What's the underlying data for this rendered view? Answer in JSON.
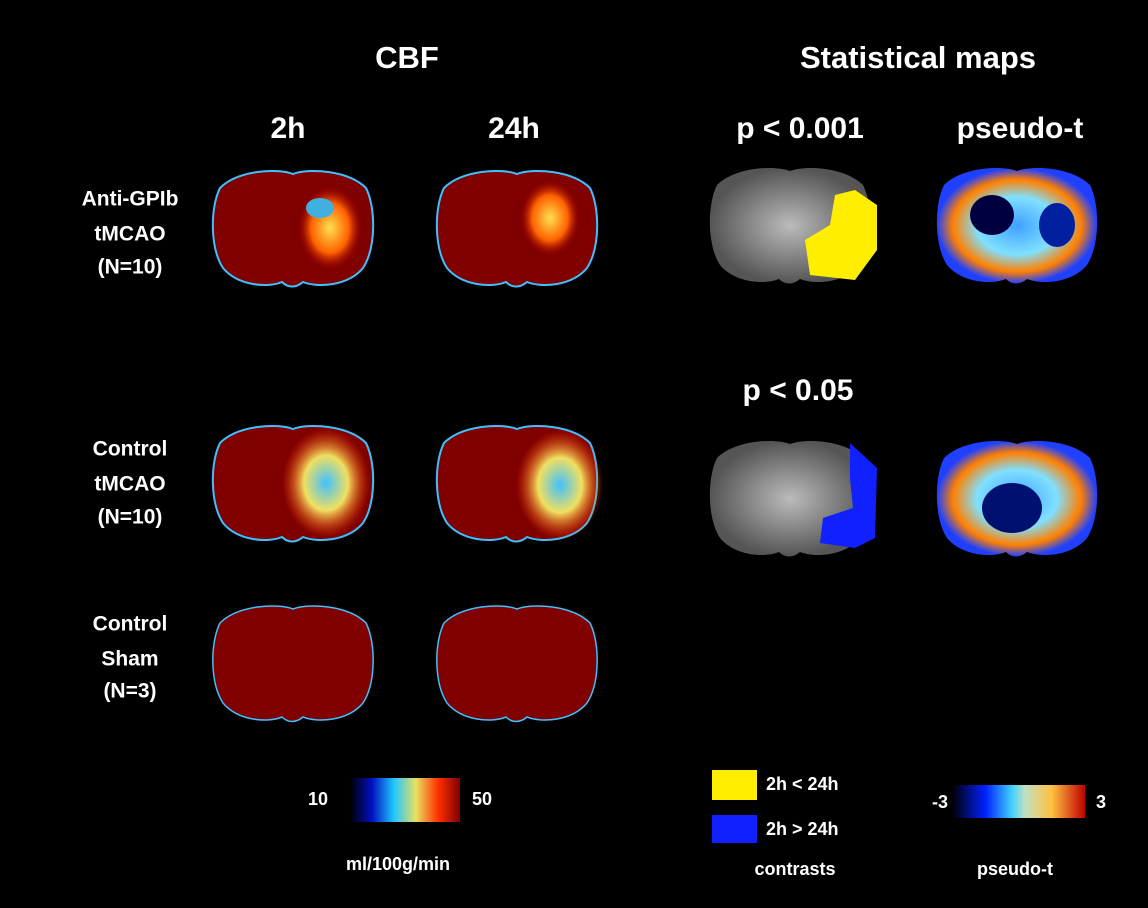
{
  "headers": {
    "cbf": "CBF",
    "statistical_maps": "Statistical maps"
  },
  "columns": {
    "cbf_2h": "2h",
    "cbf_24h": "24h",
    "p_high": "p < 0.001",
    "pseudo_t": "pseudo-t",
    "p_low": "p < 0.05"
  },
  "rows": [
    {
      "lines": [
        "Anti-GPIb",
        "tMCAO",
        "(N=10)"
      ]
    },
    {
      "lines": [
        "Control",
        "tMCAO",
        "(N=10)"
      ]
    },
    {
      "lines": [
        "Control",
        "Sham",
        "(N=3)"
      ]
    }
  ],
  "legends": {
    "cbf": {
      "min": "10",
      "max": "50",
      "label": "ml/100g/min"
    },
    "contrasts": {
      "items": [
        "2h < 24h",
        "2h > 24h"
      ],
      "label": "contrasts"
    },
    "pseudo_t": {
      "min": "-3",
      "max": "3",
      "label": "pseudo-t"
    }
  }
}
